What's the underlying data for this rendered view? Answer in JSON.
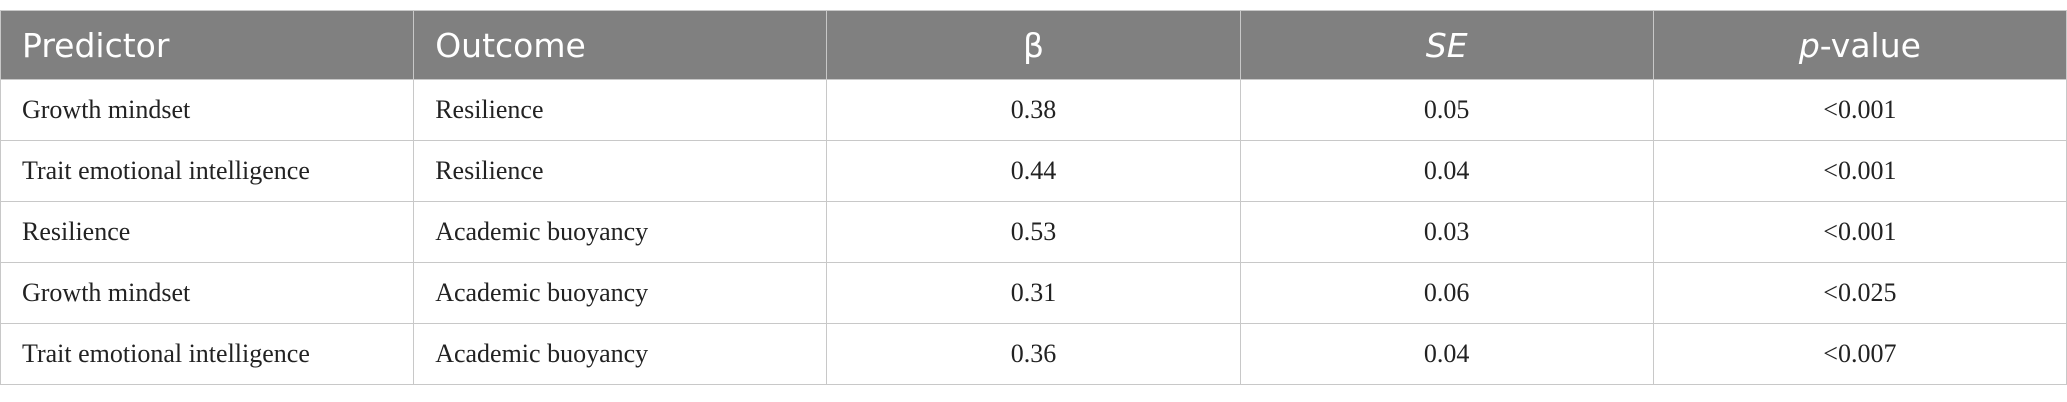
{
  "table": {
    "columns": [
      {
        "text": "Predictor"
      },
      {
        "text": "Outcome"
      },
      {
        "text": "β"
      },
      {
        "text": "SE",
        "italic": true
      },
      {
        "parts": [
          "p",
          "-value"
        ]
      }
    ],
    "rows": [
      [
        "Growth mindset",
        "Resilience",
        0.38,
        0.05,
        "<0.001"
      ],
      [
        "Trait emotional intelligence",
        "Resilience",
        0.44,
        0.04,
        "<0.001"
      ],
      [
        "Resilience",
        "Academic buoyancy",
        0.53,
        0.03,
        "<0.001"
      ],
      [
        "Growth mindset",
        "Academic buoyancy",
        0.31,
        0.06,
        "<0.025"
      ],
      [
        "Trait emotional intelligence",
        "Academic buoyancy",
        0.36,
        0.04,
        "<0.007"
      ]
    ]
  }
}
